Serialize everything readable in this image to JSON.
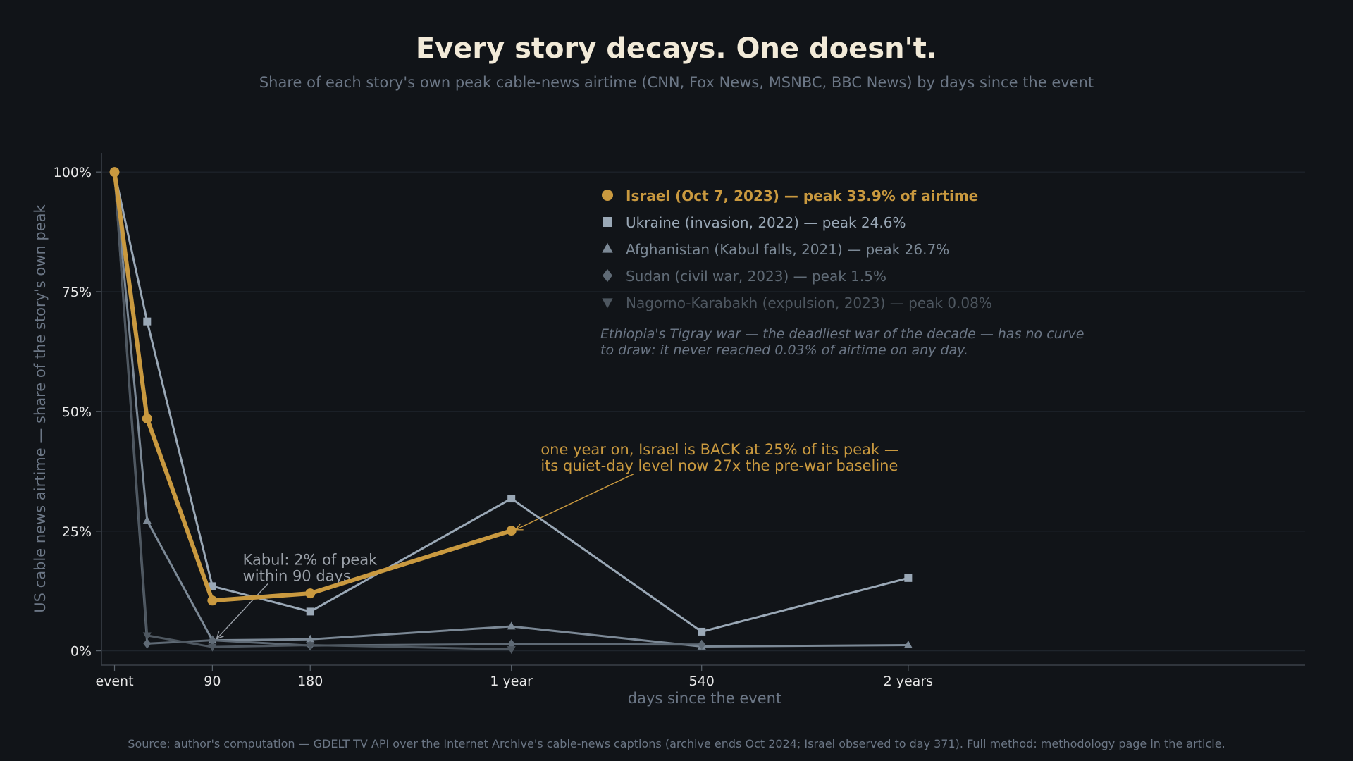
{
  "chart_data": {
    "type": "line",
    "title": "Every story decays. One doesn't.",
    "subtitle": "Share of each story's own peak cable-news airtime (CNN, Fox News, MSNBC, BBC News) by days since the event",
    "xlabel": "days since the event",
    "ylabel": "US cable news airtime — share of the story's own peak",
    "xlim": [
      -12,
      1095
    ],
    "ylim": [
      -3,
      104
    ],
    "x_ticks": [
      {
        "value": 0,
        "label": "event"
      },
      {
        "value": 90,
        "label": "90"
      },
      {
        "value": 180,
        "label": "180"
      },
      {
        "value": 365,
        "label": "1 year"
      },
      {
        "value": 540,
        "label": "540"
      },
      {
        "value": 730,
        "label": "2 years"
      }
    ],
    "y_ticks": [
      {
        "value": 0,
        "label": "0%"
      },
      {
        "value": 25,
        "label": "25%"
      },
      {
        "value": 50,
        "label": "50%"
      },
      {
        "value": 75,
        "label": "75%"
      },
      {
        "value": 100,
        "label": "100%"
      }
    ],
    "grid": "horizontal",
    "legend_position": "top-center",
    "series": [
      {
        "name": "Ukraine (invasion, 2022)",
        "peak": "peak 24.6%",
        "marker": "square",
        "color": "#9aa8b6",
        "width": 3,
        "x": [
          0,
          30,
          90,
          180,
          365,
          540,
          730
        ],
        "y": [
          100,
          68.8,
          13.5,
          8.2,
          31.8,
          4.0,
          15.2
        ]
      },
      {
        "name": "Afghanistan (Kabul falls, 2021)",
        "peak": "peak 26.7%",
        "marker": "triangle-up",
        "color": "#7c8996",
        "width": 3,
        "x": [
          0,
          30,
          90,
          180,
          365,
          540,
          730
        ],
        "y": [
          100,
          27.2,
          2.2,
          2.4,
          5.1,
          0.9,
          1.2
        ]
      },
      {
        "name": "Sudan (civil war, 2023)",
        "peak": "peak 1.5%",
        "marker": "diamond",
        "color": "#5f6a75",
        "width": 3,
        "x": [
          0,
          30,
          90,
          180,
          365,
          540
        ],
        "y": [
          100,
          1.5,
          2.2,
          1.1,
          1.4,
          1.3
        ]
      },
      {
        "name": "Nagorno-Karabakh (expulsion, 2023)",
        "peak": "peak 0.08%",
        "marker": "triangle-down",
        "color": "#4e5760",
        "width": 3,
        "x": [
          0,
          30,
          90,
          180,
          365
        ],
        "y": [
          100,
          3.2,
          0.8,
          1.2,
          0.3
        ]
      },
      {
        "name": "Israel (Oct 7, 2023)",
        "peak": "peak 33.9% of airtime",
        "marker": "circle",
        "color": "#c9993f",
        "width": 6,
        "x": [
          0,
          30,
          90,
          180,
          365
        ],
        "y": [
          100,
          48.5,
          10.5,
          12.0,
          25.1
        ]
      }
    ],
    "legend_order": [
      4,
      0,
      1,
      2,
      3
    ],
    "note_lines": [
      "Ethiopia's Tigray war — the deadliest war of the decade — has no curve",
      "to draw: it never reached 0.03% of airtime on any day."
    ],
    "annotations": [
      {
        "lines": [
          "one year on, Israel is BACK at 25% of its peak —",
          "its quiet-day level now 27x the pre-war baseline"
        ],
        "color": "#c9993f",
        "target": {
          "x": 365,
          "y": 25
        },
        "text_at": {
          "x": 392,
          "y": 41
        },
        "arrow_from": {
          "x": 478,
          "y": 37
        }
      },
      {
        "lines": [
          "Kabul: 2% of peak",
          "within 90 days"
        ],
        "color": "#9aa0a8",
        "target": {
          "x": 90,
          "y": 2.2
        },
        "text_at": {
          "x": 118,
          "y": 18
        },
        "arrow_from": {
          "x": 141,
          "y": 14
        }
      }
    ],
    "source": "Source: author's computation — GDELT TV API over the Internet Archive's cable-news captions (archive ends Oct 2024; Israel observed to day 371). Full method: methodology page in the article."
  }
}
